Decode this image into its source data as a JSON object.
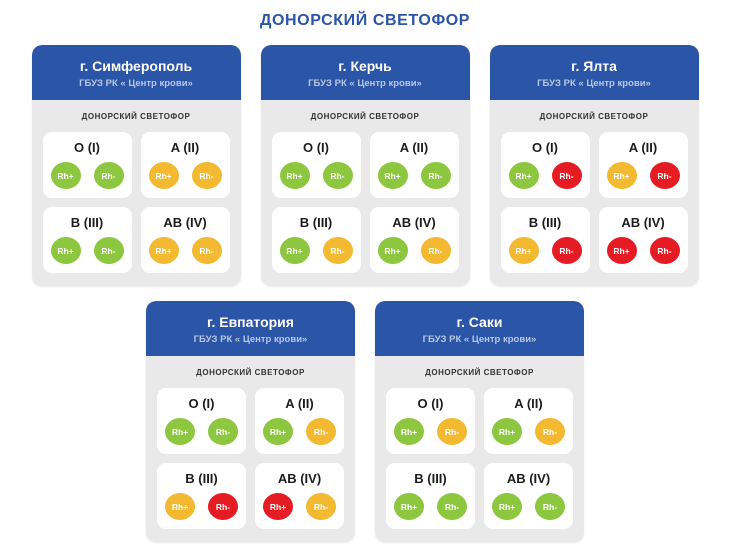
{
  "page": {
    "title": "ДОНОРСКИЙ СВЕТОФОР"
  },
  "card_inner_label": "ДОНОРСКИЙ СВЕТОФОР",
  "colors": {
    "header_blue": "#2b55a7",
    "title_blue": "#2b55a7",
    "card_bg": "#e9e9e9",
    "green": "#8dc63f",
    "yellow": "#f2b931",
    "red": "#e61c24"
  },
  "cards": [
    {
      "city": "г. Симферополь",
      "org": "ГБУЗ РК « Центр крови»",
      "groups": [
        {
          "type": "O (I)",
          "indicators": [
            {
              "label": "Rh+",
              "status": "green"
            },
            {
              "label": "Rh-",
              "status": "green"
            }
          ]
        },
        {
          "type": "A (II)",
          "indicators": [
            {
              "label": "Rh+",
              "status": "yellow"
            },
            {
              "label": "Rh-",
              "status": "yellow"
            }
          ]
        },
        {
          "type": "B (III)",
          "indicators": [
            {
              "label": "Rh+",
              "status": "green"
            },
            {
              "label": "Rh-",
              "status": "green"
            }
          ]
        },
        {
          "type": "AB (IV)",
          "indicators": [
            {
              "label": "Rh+",
              "status": "yellow"
            },
            {
              "label": "Rh-",
              "status": "yellow"
            }
          ]
        }
      ]
    },
    {
      "city": "г. Керчь",
      "org": "ГБУЗ РК « Центр крови»",
      "groups": [
        {
          "type": "O (I)",
          "indicators": [
            {
              "label": "Rh+",
              "status": "green"
            },
            {
              "label": "Rh-",
              "status": "green"
            }
          ]
        },
        {
          "type": "A (II)",
          "indicators": [
            {
              "label": "Rh+",
              "status": "green"
            },
            {
              "label": "Rh-",
              "status": "green"
            }
          ]
        },
        {
          "type": "B (III)",
          "indicators": [
            {
              "label": "Rh+",
              "status": "green"
            },
            {
              "label": "Rh-",
              "status": "yellow"
            }
          ]
        },
        {
          "type": "AB (IV)",
          "indicators": [
            {
              "label": "Rh+",
              "status": "green"
            },
            {
              "label": "Rh-",
              "status": "yellow"
            }
          ]
        }
      ]
    },
    {
      "city": "г. Ялта",
      "org": "ГБУЗ РК « Центр крови»",
      "groups": [
        {
          "type": "O (I)",
          "indicators": [
            {
              "label": "Rh+",
              "status": "green"
            },
            {
              "label": "Rh-",
              "status": "red"
            }
          ]
        },
        {
          "type": "A (II)",
          "indicators": [
            {
              "label": "Rh+",
              "status": "yellow"
            },
            {
              "label": "Rh-",
              "status": "red"
            }
          ]
        },
        {
          "type": "B (III)",
          "indicators": [
            {
              "label": "Rh+",
              "status": "yellow"
            },
            {
              "label": "Rh-",
              "status": "red"
            }
          ]
        },
        {
          "type": "AB (IV)",
          "indicators": [
            {
              "label": "Rh+",
              "status": "red"
            },
            {
              "label": "Rh-",
              "status": "red"
            }
          ]
        }
      ]
    },
    {
      "city": "г. Евпатория",
      "org": "ГБУЗ РК « Центр крови»",
      "groups": [
        {
          "type": "O (I)",
          "indicators": [
            {
              "label": "Rh+",
              "status": "green"
            },
            {
              "label": "Rh-",
              "status": "green"
            }
          ]
        },
        {
          "type": "A (II)",
          "indicators": [
            {
              "label": "Rh+",
              "status": "green"
            },
            {
              "label": "Rh-",
              "status": "yellow"
            }
          ]
        },
        {
          "type": "B (III)",
          "indicators": [
            {
              "label": "Rh+",
              "status": "yellow"
            },
            {
              "label": "Rh-",
              "status": "red"
            }
          ]
        },
        {
          "type": "AB (IV)",
          "indicators": [
            {
              "label": "Rh+",
              "status": "red"
            },
            {
              "label": "Rh-",
              "status": "yellow"
            }
          ]
        }
      ]
    },
    {
      "city": "г. Саки",
      "org": "ГБУЗ РК « Центр крови»",
      "groups": [
        {
          "type": "O (I)",
          "indicators": [
            {
              "label": "Rh+",
              "status": "green"
            },
            {
              "label": "Rh-",
              "status": "yellow"
            }
          ]
        },
        {
          "type": "A (II)",
          "indicators": [
            {
              "label": "Rh+",
              "status": "green"
            },
            {
              "label": "Rh-",
              "status": "yellow"
            }
          ]
        },
        {
          "type": "B (III)",
          "indicators": [
            {
              "label": "Rh+",
              "status": "green"
            },
            {
              "label": "Rh-",
              "status": "green"
            }
          ]
        },
        {
          "type": "AB (IV)",
          "indicators": [
            {
              "label": "Rh+",
              "status": "green"
            },
            {
              "label": "Rh-",
              "status": "green"
            }
          ]
        }
      ]
    }
  ]
}
